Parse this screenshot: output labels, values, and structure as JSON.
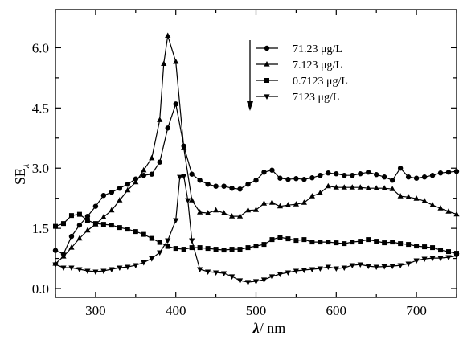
{
  "chart_data": {
    "type": "line",
    "xlabel_symbol": "λ",
    "xlabel_unit": "/ nm",
    "ylabel_main": "SE",
    "ylabel_sub": "λ",
    "xlim": [
      250,
      750
    ],
    "ylim": [
      -0.22,
      6.95
    ],
    "xticks": [
      300,
      400,
      500,
      600,
      700
    ],
    "yticks": [
      0.0,
      1.5,
      3.0,
      4.5,
      6.0
    ],
    "ytick_labels": [
      "0.0",
      "1.5",
      "3.0",
      "4.5",
      "6.0"
    ],
    "legend_position": "top-right",
    "legend_arrow": "down",
    "series": [
      {
        "name": "71.23 μg/L",
        "marker": "circle",
        "points": [
          [
            250,
            0.95
          ],
          [
            260,
            0.86
          ],
          [
            270,
            1.3
          ],
          [
            280,
            1.58
          ],
          [
            290,
            1.8
          ],
          [
            300,
            2.05
          ],
          [
            310,
            2.32
          ],
          [
            320,
            2.4
          ],
          [
            330,
            2.5
          ],
          [
            340,
            2.6
          ],
          [
            350,
            2.73
          ],
          [
            360,
            2.82
          ],
          [
            370,
            2.85
          ],
          [
            380,
            3.15
          ],
          [
            390,
            4.0
          ],
          [
            400,
            4.6
          ],
          [
            410,
            3.55
          ],
          [
            420,
            2.85
          ],
          [
            430,
            2.7
          ],
          [
            440,
            2.6
          ],
          [
            450,
            2.55
          ],
          [
            460,
            2.55
          ],
          [
            470,
            2.5
          ],
          [
            480,
            2.48
          ],
          [
            490,
            2.6
          ],
          [
            500,
            2.7
          ],
          [
            510,
            2.9
          ],
          [
            520,
            2.95
          ],
          [
            530,
            2.75
          ],
          [
            540,
            2.72
          ],
          [
            550,
            2.74
          ],
          [
            560,
            2.72
          ],
          [
            570,
            2.76
          ],
          [
            580,
            2.82
          ],
          [
            590,
            2.88
          ],
          [
            600,
            2.86
          ],
          [
            610,
            2.82
          ],
          [
            620,
            2.82
          ],
          [
            630,
            2.86
          ],
          [
            640,
            2.9
          ],
          [
            650,
            2.84
          ],
          [
            660,
            2.78
          ],
          [
            670,
            2.7
          ],
          [
            680,
            3.0
          ],
          [
            690,
            2.78
          ],
          [
            700,
            2.75
          ],
          [
            710,
            2.78
          ],
          [
            720,
            2.82
          ],
          [
            730,
            2.88
          ],
          [
            740,
            2.9
          ],
          [
            750,
            2.92
          ]
        ]
      },
      {
        "name": "7.123 μg/L",
        "marker": "triangle-up",
        "points": [
          [
            250,
            0.62
          ],
          [
            260,
            0.8
          ],
          [
            270,
            1.02
          ],
          [
            280,
            1.25
          ],
          [
            290,
            1.45
          ],
          [
            300,
            1.6
          ],
          [
            310,
            1.78
          ],
          [
            320,
            1.95
          ],
          [
            330,
            2.2
          ],
          [
            340,
            2.45
          ],
          [
            350,
            2.65
          ],
          [
            360,
            2.95
          ],
          [
            370,
            3.25
          ],
          [
            380,
            4.2
          ],
          [
            385,
            5.6
          ],
          [
            390,
            6.3
          ],
          [
            400,
            5.65
          ],
          [
            410,
            3.5
          ],
          [
            420,
            2.2
          ],
          [
            430,
            1.9
          ],
          [
            440,
            1.88
          ],
          [
            450,
            1.95
          ],
          [
            460,
            1.88
          ],
          [
            470,
            1.8
          ],
          [
            480,
            1.8
          ],
          [
            490,
            1.95
          ],
          [
            500,
            1.96
          ],
          [
            510,
            2.12
          ],
          [
            520,
            2.14
          ],
          [
            530,
            2.05
          ],
          [
            540,
            2.08
          ],
          [
            550,
            2.1
          ],
          [
            560,
            2.14
          ],
          [
            570,
            2.3
          ],
          [
            580,
            2.38
          ],
          [
            590,
            2.55
          ],
          [
            600,
            2.52
          ],
          [
            610,
            2.52
          ],
          [
            620,
            2.52
          ],
          [
            630,
            2.52
          ],
          [
            640,
            2.5
          ],
          [
            650,
            2.5
          ],
          [
            660,
            2.5
          ],
          [
            670,
            2.48
          ],
          [
            680,
            2.3
          ],
          [
            690,
            2.28
          ],
          [
            700,
            2.24
          ],
          [
            710,
            2.18
          ],
          [
            720,
            2.08
          ],
          [
            730,
            2.0
          ],
          [
            740,
            1.92
          ],
          [
            750,
            1.85
          ]
        ]
      },
      {
        "name": "0.7123 μg/L",
        "marker": "square",
        "points": [
          [
            250,
            1.55
          ],
          [
            260,
            1.62
          ],
          [
            270,
            1.82
          ],
          [
            280,
            1.85
          ],
          [
            290,
            1.7
          ],
          [
            300,
            1.62
          ],
          [
            310,
            1.6
          ],
          [
            320,
            1.58
          ],
          [
            330,
            1.52
          ],
          [
            340,
            1.48
          ],
          [
            350,
            1.42
          ],
          [
            360,
            1.35
          ],
          [
            370,
            1.25
          ],
          [
            380,
            1.15
          ],
          [
            390,
            1.05
          ],
          [
            400,
            1.0
          ],
          [
            410,
            0.98
          ],
          [
            420,
            1.02
          ],
          [
            430,
            1.02
          ],
          [
            440,
            1.0
          ],
          [
            450,
            0.98
          ],
          [
            460,
            0.96
          ],
          [
            470,
            0.98
          ],
          [
            480,
            0.98
          ],
          [
            490,
            1.02
          ],
          [
            500,
            1.06
          ],
          [
            510,
            1.1
          ],
          [
            520,
            1.22
          ],
          [
            530,
            1.28
          ],
          [
            540,
            1.24
          ],
          [
            550,
            1.2
          ],
          [
            560,
            1.22
          ],
          [
            570,
            1.16
          ],
          [
            580,
            1.16
          ],
          [
            590,
            1.16
          ],
          [
            600,
            1.14
          ],
          [
            610,
            1.12
          ],
          [
            620,
            1.16
          ],
          [
            630,
            1.18
          ],
          [
            640,
            1.22
          ],
          [
            650,
            1.18
          ],
          [
            660,
            1.14
          ],
          [
            670,
            1.16
          ],
          [
            680,
            1.12
          ],
          [
            690,
            1.1
          ],
          [
            700,
            1.06
          ],
          [
            710,
            1.04
          ],
          [
            720,
            1.02
          ],
          [
            730,
            0.96
          ],
          [
            740,
            0.92
          ],
          [
            750,
            0.88
          ]
        ]
      },
      {
        "name": "7123 μg/L",
        "marker": "triangle-down",
        "points": [
          [
            250,
            0.6
          ],
          [
            260,
            0.52
          ],
          [
            270,
            0.52
          ],
          [
            280,
            0.48
          ],
          [
            290,
            0.44
          ],
          [
            300,
            0.42
          ],
          [
            310,
            0.44
          ],
          [
            320,
            0.48
          ],
          [
            330,
            0.52
          ],
          [
            340,
            0.54
          ],
          [
            350,
            0.58
          ],
          [
            360,
            0.65
          ],
          [
            370,
            0.75
          ],
          [
            380,
            0.9
          ],
          [
            390,
            1.2
          ],
          [
            400,
            1.7
          ],
          [
            405,
            2.78
          ],
          [
            410,
            2.8
          ],
          [
            415,
            2.2
          ],
          [
            420,
            1.2
          ],
          [
            430,
            0.48
          ],
          [
            440,
            0.42
          ],
          [
            450,
            0.4
          ],
          [
            460,
            0.38
          ],
          [
            470,
            0.3
          ],
          [
            480,
            0.2
          ],
          [
            490,
            0.16
          ],
          [
            500,
            0.18
          ],
          [
            510,
            0.22
          ],
          [
            520,
            0.3
          ],
          [
            530,
            0.36
          ],
          [
            540,
            0.4
          ],
          [
            550,
            0.44
          ],
          [
            560,
            0.46
          ],
          [
            570,
            0.48
          ],
          [
            580,
            0.5
          ],
          [
            590,
            0.54
          ],
          [
            600,
            0.5
          ],
          [
            610,
            0.52
          ],
          [
            620,
            0.58
          ],
          [
            630,
            0.6
          ],
          [
            640,
            0.56
          ],
          [
            650,
            0.54
          ],
          [
            660,
            0.55
          ],
          [
            670,
            0.56
          ],
          [
            680,
            0.58
          ],
          [
            690,
            0.62
          ],
          [
            700,
            0.7
          ],
          [
            710,
            0.74
          ],
          [
            720,
            0.76
          ],
          [
            730,
            0.76
          ],
          [
            740,
            0.78
          ],
          [
            750,
            0.82
          ]
        ]
      }
    ]
  }
}
